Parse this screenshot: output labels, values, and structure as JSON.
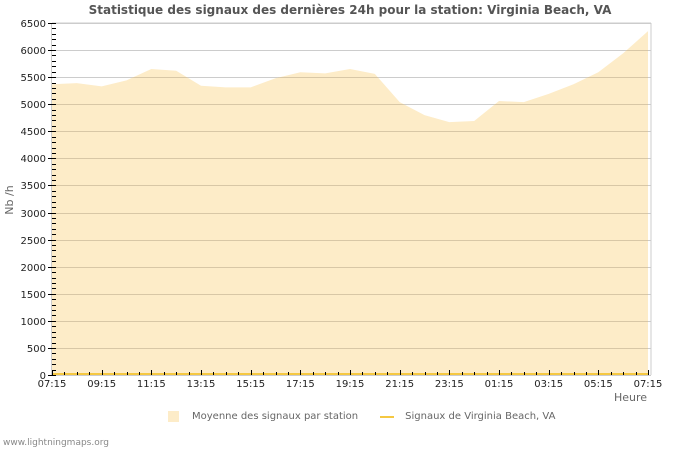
{
  "title": "Statistique des signaux des dernières 24h pour la station: Virginia Beach, VA",
  "axes": {
    "ylabel": "Nb /h",
    "xlabel": "Heure",
    "yticks": [
      0,
      500,
      1000,
      1500,
      2000,
      2500,
      3000,
      3500,
      4000,
      4500,
      5000,
      5500,
      6000,
      6500
    ],
    "xticks": [
      "07:15",
      "09:15",
      "11:15",
      "13:15",
      "15:15",
      "17:15",
      "19:15",
      "21:15",
      "23:15",
      "01:15",
      "03:15",
      "05:15",
      "07:15"
    ]
  },
  "legend": {
    "area_label": "Moyenne des signaux par station",
    "line_label": "Signaux de Virginia Beach, VA"
  },
  "colors": {
    "area": "#fdecc8",
    "line": "#f5c842",
    "grid": "#cccccc",
    "grid_on_area": "#d8c7a6"
  },
  "footer": "www.lightningmaps.org",
  "chart_data": {
    "type": "area",
    "title": "Statistique des signaux des dernières 24h pour la station: Virginia Beach, VA",
    "xlabel": "Heure",
    "ylabel": "Nb /h",
    "ylim": [
      0,
      6500
    ],
    "grid": true,
    "legend_position": "bottom",
    "x": [
      "07:15",
      "08:15",
      "09:15",
      "10:15",
      "11:15",
      "12:15",
      "13:15",
      "14:15",
      "15:15",
      "16:15",
      "17:15",
      "18:15",
      "19:15",
      "20:15",
      "21:15",
      "22:15",
      "23:15",
      "00:15",
      "01:15",
      "02:15",
      "03:15",
      "04:15",
      "05:15",
      "06:15",
      "07:15"
    ],
    "series": [
      {
        "name": "Moyenne des signaux par station",
        "type": "area",
        "values": [
          5370,
          5390,
          5330,
          5440,
          5650,
          5620,
          5340,
          5310,
          5310,
          5480,
          5590,
          5570,
          5650,
          5560,
          5040,
          4800,
          4670,
          4690,
          5060,
          5040,
          5190,
          5370,
          5590,
          5940,
          6350
        ]
      },
      {
        "name": "Signaux de Virginia Beach, VA",
        "type": "line",
        "values": [
          0,
          0,
          0,
          0,
          0,
          0,
          0,
          0,
          0,
          0,
          0,
          0,
          0,
          0,
          0,
          0,
          0,
          0,
          0,
          0,
          0,
          0,
          0,
          0,
          0
        ]
      }
    ]
  }
}
